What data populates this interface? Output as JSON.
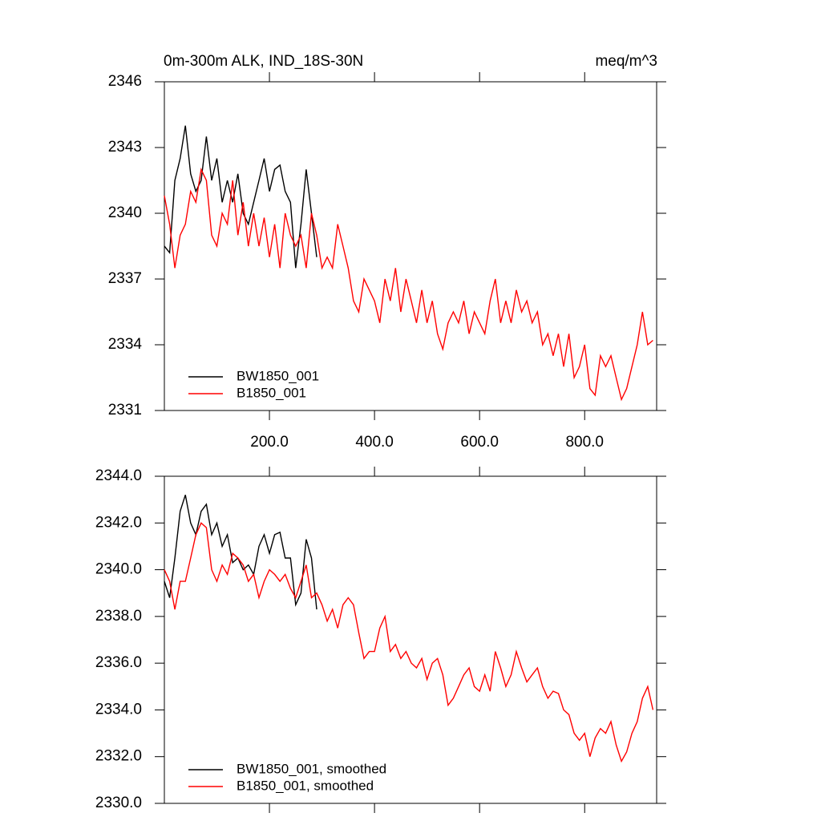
{
  "chart_data": [
    {
      "type": "line",
      "title": "0m-300m ALK, IND_18S-30N",
      "units": "meq/m^3",
      "xlim": [
        0,
        937
      ],
      "xticks": [
        {
          "value": 200,
          "label": "200.0"
        },
        {
          "value": 400,
          "label": "400.0"
        },
        {
          "value": 600,
          "label": "600.0"
        },
        {
          "value": 800,
          "label": "800.0"
        }
      ],
      "xtick_labels": true,
      "ylim": [
        2331,
        2346
      ],
      "yticks": [
        2331,
        2334,
        2337,
        2340,
        2343,
        2346
      ],
      "legend": "lower left",
      "series": [
        {
          "name": "BW1850_001",
          "color": "#000000",
          "x": [
            0,
            10,
            20,
            30,
            40,
            50,
            60,
            70,
            80,
            90,
            100,
            110,
            120,
            130,
            140,
            150,
            160,
            170,
            180,
            190,
            200,
            210,
            220,
            230,
            240,
            250,
            260,
            270,
            280,
            290
          ],
          "values": [
            2338.5,
            2338.2,
            2341.5,
            2342.5,
            2344,
            2341.8,
            2341,
            2341.5,
            2343.5,
            2341.5,
            2342.5,
            2340.5,
            2341.5,
            2340.5,
            2341.8,
            2340,
            2339.5,
            2340.5,
            2341.5,
            2342.5,
            2341,
            2342,
            2342.2,
            2341,
            2340.5,
            2337.5,
            2339.5,
            2342,
            2340,
            2338
          ]
        },
        {
          "name": "B1850_001",
          "color": "#ff0000",
          "x": [
            0,
            10,
            20,
            30,
            40,
            50,
            60,
            70,
            80,
            90,
            100,
            110,
            120,
            130,
            140,
            150,
            160,
            170,
            180,
            190,
            200,
            210,
            220,
            230,
            240,
            250,
            260,
            270,
            280,
            290,
            300,
            310,
            320,
            330,
            340,
            350,
            360,
            370,
            380,
            390,
            400,
            410,
            420,
            430,
            440,
            450,
            460,
            470,
            480,
            490,
            500,
            510,
            520,
            530,
            540,
            550,
            560,
            570,
            580,
            590,
            600,
            610,
            620,
            630,
            640,
            650,
            660,
            670,
            680,
            690,
            700,
            710,
            720,
            730,
            740,
            750,
            760,
            770,
            780,
            790,
            800,
            810,
            820,
            830,
            840,
            850,
            860,
            870,
            880,
            890,
            900,
            910,
            920,
            930
          ],
          "values": [
            2340.8,
            2339.5,
            2337.5,
            2339,
            2339.5,
            2341,
            2340.5,
            2342,
            2341.5,
            2339,
            2338.5,
            2340,
            2339.5,
            2341.5,
            2339,
            2340.5,
            2338.5,
            2340,
            2338.5,
            2339.8,
            2338,
            2339.5,
            2337.5,
            2340,
            2339,
            2338.5,
            2339,
            2337.5,
            2340,
            2339,
            2337.5,
            2338,
            2337.5,
            2339.5,
            2338.5,
            2337.5,
            2336,
            2335.5,
            2337,
            2336.5,
            2336,
            2335,
            2337,
            2336,
            2337.5,
            2335.5,
            2337,
            2336,
            2335,
            2336.5,
            2335,
            2336,
            2334.5,
            2333.8,
            2335,
            2335.5,
            2335,
            2336,
            2334.5,
            2335.5,
            2335,
            2334.5,
            2336,
            2337,
            2335,
            2336,
            2335,
            2336.5,
            2335.5,
            2336,
            2335,
            2335.5,
            2334,
            2334.5,
            2333.5,
            2334.5,
            2333,
            2334.5,
            2332.5,
            2333,
            2334,
            2332,
            2331.7,
            2333.5,
            2333,
            2333.5,
            2332.5,
            2331.5,
            2332,
            2333,
            2334,
            2335.5,
            2334,
            2334.2
          ]
        }
      ]
    },
    {
      "type": "line",
      "xlim": [
        0,
        937
      ],
      "xticks": [
        200,
        400,
        600,
        800
      ],
      "xtick_labels": false,
      "ylim": [
        2330,
        2344
      ],
      "yticks": [
        {
          "value": 2330,
          "label": "2330.0"
        },
        {
          "value": 2332,
          "label": "2332.0"
        },
        {
          "value": 2334,
          "label": "2334.0"
        },
        {
          "value": 2336,
          "label": "2336.0"
        },
        {
          "value": 2338,
          "label": "2338.0"
        },
        {
          "value": 2340,
          "label": "2340.0"
        },
        {
          "value": 2342,
          "label": "2342.0"
        },
        {
          "value": 2344,
          "label": "2344.0"
        }
      ],
      "legend": "lower left",
      "series": [
        {
          "name": "BW1850_001, smoothed",
          "color": "#000000",
          "x": [
            0,
            10,
            20,
            30,
            40,
            50,
            60,
            70,
            80,
            90,
            100,
            110,
            120,
            130,
            140,
            150,
            160,
            170,
            180,
            190,
            200,
            210,
            220,
            230,
            240,
            250,
            260,
            270,
            280,
            290
          ],
          "values": [
            2339.5,
            2338.8,
            2340.5,
            2342.5,
            2343.2,
            2342,
            2341.5,
            2342.5,
            2342.8,
            2341.5,
            2342,
            2341,
            2341.5,
            2340.3,
            2340.5,
            2340,
            2340.2,
            2339.8,
            2341,
            2341.5,
            2340.7,
            2341.5,
            2341.6,
            2340.5,
            2340.5,
            2338.5,
            2339,
            2341.3,
            2340.5,
            2338.3
          ]
        },
        {
          "name": "B1850_001, smoothed",
          "color": "#ff0000",
          "x": [
            0,
            10,
            20,
            30,
            40,
            50,
            60,
            70,
            80,
            90,
            100,
            110,
            120,
            130,
            140,
            150,
            160,
            170,
            180,
            190,
            200,
            210,
            220,
            230,
            240,
            250,
            260,
            270,
            280,
            290,
            300,
            310,
            320,
            330,
            340,
            350,
            360,
            370,
            380,
            390,
            400,
            410,
            420,
            430,
            440,
            450,
            460,
            470,
            480,
            490,
            500,
            510,
            520,
            530,
            540,
            550,
            560,
            570,
            580,
            590,
            600,
            610,
            620,
            630,
            640,
            650,
            660,
            670,
            680,
            690,
            700,
            710,
            720,
            730,
            740,
            750,
            760,
            770,
            780,
            790,
            800,
            810,
            820,
            830,
            840,
            850,
            860,
            870,
            880,
            890,
            900,
            910,
            920,
            930
          ],
          "values": [
            2340,
            2339.5,
            2338.3,
            2339.5,
            2339.5,
            2340.5,
            2341.5,
            2342,
            2341.8,
            2340,
            2339.5,
            2340.2,
            2339.8,
            2340.7,
            2340.5,
            2340.2,
            2339.5,
            2339.8,
            2338.8,
            2339.5,
            2340,
            2339.8,
            2339.5,
            2339.8,
            2339.2,
            2338.8,
            2339.5,
            2340.2,
            2338.8,
            2339,
            2338.5,
            2337.8,
            2338.3,
            2337.5,
            2338.5,
            2338.8,
            2338.5,
            2337.3,
            2336.2,
            2336.5,
            2336.5,
            2337.5,
            2338,
            2336.5,
            2336.8,
            2336.2,
            2336.5,
            2336,
            2335.8,
            2336.2,
            2335.3,
            2336,
            2336.2,
            2335.5,
            2334.2,
            2334.5,
            2335,
            2335.5,
            2335.8,
            2335,
            2334.8,
            2335.5,
            2334.8,
            2336.5,
            2335.8,
            2335,
            2335.5,
            2336.5,
            2335.8,
            2335.2,
            2335.5,
            2335.8,
            2335,
            2334.5,
            2334.8,
            2334.7,
            2334,
            2333.8,
            2333,
            2332.7,
            2333,
            2332,
            2332.8,
            2333.2,
            2333,
            2333.5,
            2332.5,
            2331.8,
            2332.2,
            2333,
            2333.5,
            2334.5,
            2335,
            2334
          ]
        }
      ]
    }
  ]
}
